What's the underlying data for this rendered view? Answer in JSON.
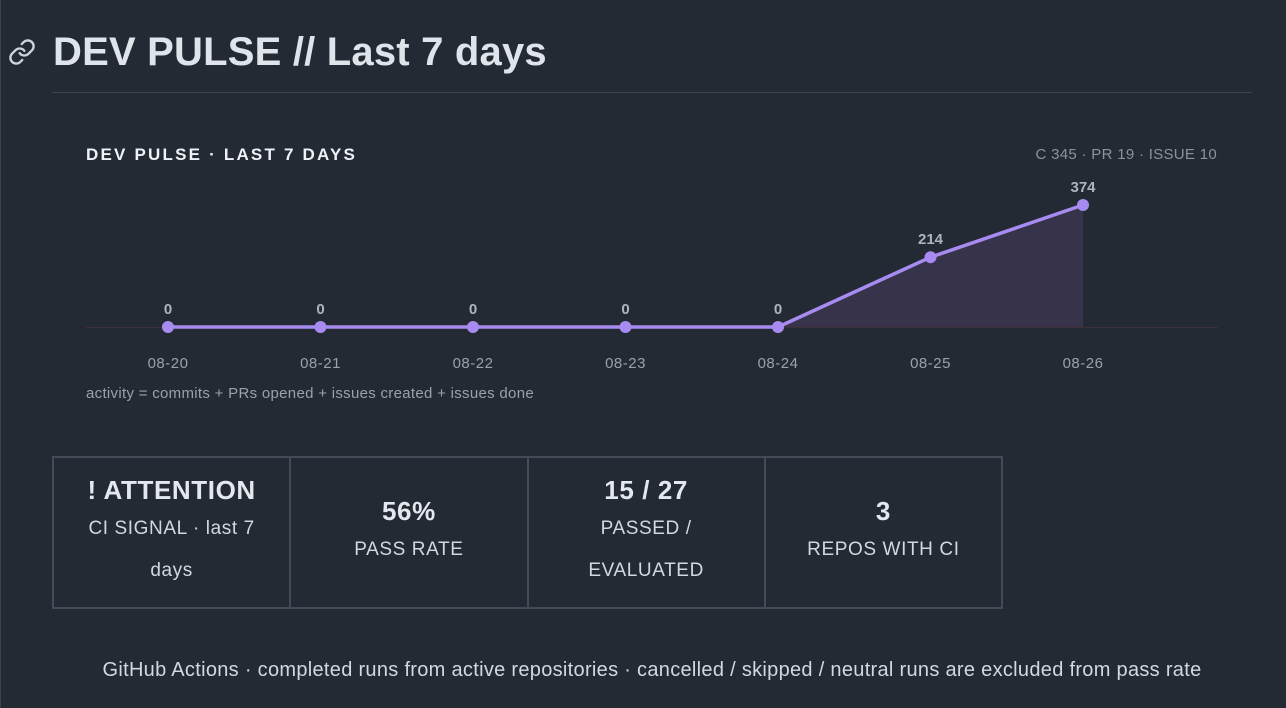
{
  "header": {
    "title": "DEV PULSE // Last 7 days",
    "icon": "link-icon"
  },
  "chart_data": {
    "type": "area",
    "title": "DEV PULSE · LAST 7 DAYS",
    "summary": "C 345 · PR 19 · ISSUE 10",
    "note": "activity = commits + PRs opened + issues created + issues done",
    "x": [
      "08-20",
      "08-21",
      "08-22",
      "08-23",
      "08-24",
      "08-25",
      "08-26"
    ],
    "values": [
      0,
      0,
      0,
      0,
      0,
      214,
      374
    ],
    "ylim": [
      0,
      374
    ],
    "grid": false,
    "line_color": "#a78bf0",
    "fill_color": "#3a3550"
  },
  "kpis": [
    {
      "value": "! ATTENTION",
      "label": "CI SIGNAL · last 7 days"
    },
    {
      "value": "56%",
      "label": "PASS RATE"
    },
    {
      "value": "15 / 27",
      "label": "PASSED / EVALUATED"
    },
    {
      "value": "3",
      "label": "REPOS WITH CI"
    }
  ],
  "footer": {
    "text": "GitHub Actions · completed runs from active repositories · cancelled / skipped / neutral runs are excluded from pass rate"
  }
}
